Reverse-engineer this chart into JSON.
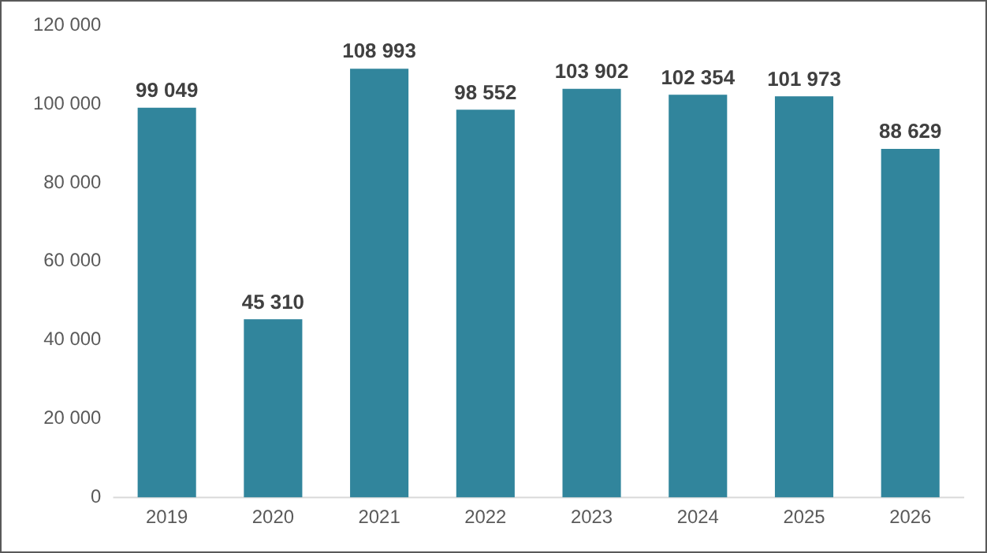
{
  "chart_data": {
    "type": "bar",
    "categories": [
      "2019",
      "2020",
      "2021",
      "2022",
      "2023",
      "2024",
      "2025",
      "2026"
    ],
    "values": [
      99049,
      45310,
      108993,
      98552,
      103902,
      102354,
      101973,
      88629
    ],
    "value_labels": [
      "99 049",
      "45 310",
      "108 993",
      "98 552",
      "103 902",
      "102 354",
      "101 973",
      "88 629"
    ],
    "color": "#31859c",
    "ylim": [
      0,
      120000
    ],
    "yticks": [
      {
        "value": 0,
        "label": "0"
      },
      {
        "value": 20000,
        "label": "20 000"
      },
      {
        "value": 40000,
        "label": "40 000"
      },
      {
        "value": 60000,
        "label": "60 000"
      },
      {
        "value": 80000,
        "label": "80 000"
      },
      {
        "value": 100000,
        "label": "100 000"
      },
      {
        "value": 120000,
        "label": "120 000"
      }
    ],
    "grid": false,
    "legend": false
  }
}
